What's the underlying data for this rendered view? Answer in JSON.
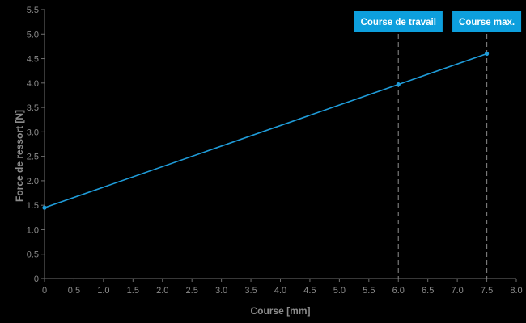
{
  "chart_data": {
    "type": "line",
    "title": "",
    "xlabel": "Course [mm]",
    "ylabel": "Force de ressort [N]",
    "xlim": [
      0,
      8.0
    ],
    "ylim": [
      0,
      5.5
    ],
    "xtick_step": 0.5,
    "ytick_step": 0.5,
    "xticks": [
      "0",
      "0.5",
      "1.0",
      "1.5",
      "2.0",
      "2.5",
      "3.0",
      "3.5",
      "4.0",
      "4.5",
      "5.0",
      "5.5",
      "6.0",
      "6.5",
      "7.0",
      "7.5",
      "8.0"
    ],
    "yticks": [
      "0",
      "0.5",
      "1.0",
      "1.5",
      "2.0",
      "2.5",
      "3.0",
      "3.5",
      "4.0",
      "4.5",
      "5.0",
      "5.5"
    ],
    "grid": false,
    "legend": false,
    "series": [
      {
        "name": "Force de ressort",
        "color": "#1f9cd9",
        "points": [
          {
            "x": 0,
            "y": 1.45
          },
          {
            "x": 6.0,
            "y": 3.97
          },
          {
            "x": 7.5,
            "y": 4.6
          }
        ]
      }
    ],
    "annotations": [
      {
        "x": 6.0,
        "label": "Course de travail"
      },
      {
        "x": 7.5,
        "label": "Course max."
      }
    ]
  },
  "colors": {
    "background": "#000000",
    "line": "#1f9cd9",
    "badge": "#0d9fdd",
    "badge_text": "#ffffff",
    "axis": "#6f6f6f",
    "tick_text": "#8c8c8c",
    "reference_line": "#787878"
  }
}
